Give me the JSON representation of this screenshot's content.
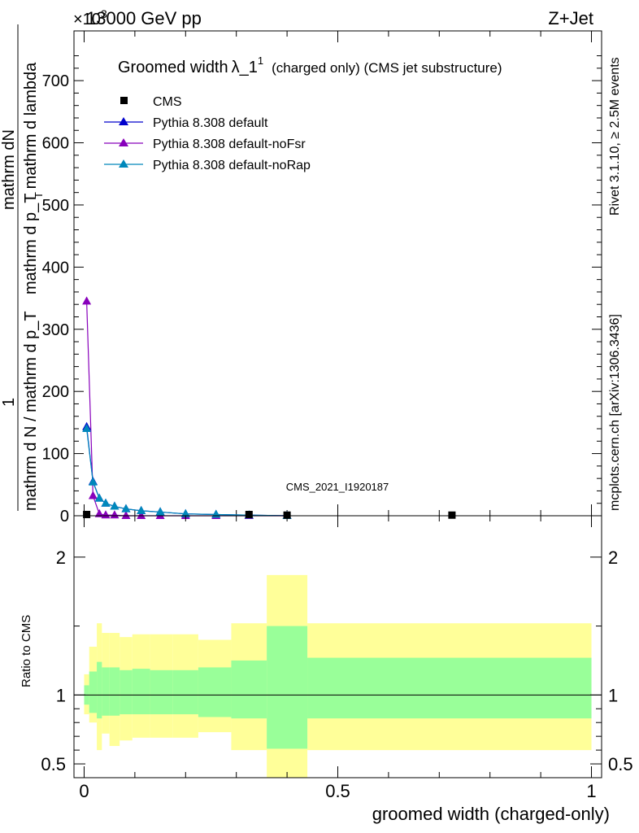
{
  "header": {
    "energy": "13000 GeV pp",
    "process": "Z+Jet",
    "exponent": "×10",
    "exponent_power": "3"
  },
  "side_labels": {
    "rivet": "Rivet 3.1.10, ≥ 2.5M events",
    "mcplots": "mcplots.cern.ch [arXiv:1306.3436]"
  },
  "plot": {
    "title_main": "Groomed width",
    "title_sym": "λ_1",
    "title_sup": "1",
    "title_rest": "(charged only) (CMS jet substructure)",
    "watermark": "CMS_2021_I1920187",
    "ylabel_num": "mathrm dN",
    "ylabel_den": "mathrm d p_T mathrm d lambda",
    "ylabel_frac1": "1",
    "ylabel_frac1_den": "mathrm d N / mathrm d p_T",
    "ylabel_sub": "T",
    "ratio_ylabel": "Ratio to CMS",
    "xlabel": "groomed width (charged-only)"
  },
  "colors": {
    "cms": "#000000",
    "default": "#0000cc",
    "noFsr": "#8800bb",
    "noRap": "#0088bb",
    "band_inner": "#99ff99",
    "band_outer": "#ffff99"
  },
  "chart_data": [
    {
      "type": "line",
      "title": "Groomed width λ_1^1 (charged only) (CMS jet substructure)",
      "ylim": [
        0,
        780
      ],
      "xlim": [
        -0.02,
        1.02
      ],
      "y_scale_factor": "×10^3",
      "y_ticks": [
        "0",
        "100",
        "200",
        "300",
        "400",
        "500",
        "600",
        "700"
      ],
      "legend_position": "top-left",
      "series": [
        {
          "name": "CMS",
          "marker": "square",
          "x": [
            0.005,
            0.325,
            0.4,
            0.725
          ],
          "y": [
            2,
            2,
            1,
            1
          ]
        },
        {
          "name": "Pythia 8.308 default",
          "marker": "triangle",
          "x": [
            0.005,
            0.0175,
            0.03,
            0.0425,
            0.06,
            0.0825,
            0.1125,
            0.15,
            0.2,
            0.26,
            0.325,
            0.4
          ],
          "y": [
            143,
            55,
            28,
            20,
            15,
            11,
            8,
            6,
            3,
            2,
            1,
            0
          ]
        },
        {
          "name": "Pythia 8.308 default-noFsr",
          "marker": "triangle",
          "x": [
            0.005,
            0.0175,
            0.03,
            0.0425,
            0.06,
            0.0825,
            0.1125,
            0.15,
            0.2,
            0.26,
            0.325,
            0.4
          ],
          "y": [
            345,
            32,
            3,
            1,
            1,
            0,
            0,
            0,
            0,
            0,
            0,
            0
          ]
        },
        {
          "name": "Pythia 8.308 default-noRap",
          "marker": "triangle",
          "x": [
            0.005,
            0.0175,
            0.03,
            0.0425,
            0.06,
            0.0825,
            0.1125,
            0.15,
            0.2,
            0.26,
            0.325,
            0.4
          ],
          "y": [
            140,
            54,
            28,
            20,
            15,
            11,
            8,
            6,
            3,
            2,
            1,
            0
          ]
        }
      ]
    },
    {
      "type": "area",
      "title": "Ratio to CMS",
      "ylabel": "Ratio to CMS",
      "xlabel": "groomed width (charged-only)",
      "ylim": [
        0.4,
        2.3
      ],
      "xlim": [
        -0.02,
        1.02
      ],
      "y_ticks": [
        "0.5",
        "1",
        "2"
      ],
      "x_ticks": [
        "0",
        "0.5",
        "1"
      ],
      "reference_line": 1,
      "bin_edges": [
        0,
        0.01,
        0.025,
        0.035,
        0.05,
        0.07,
        0.095,
        0.13,
        0.175,
        0.225,
        0.29,
        0.36,
        0.44,
        1.0
      ],
      "inner_band": {
        "lower": [
          0.93,
          0.87,
          0.83,
          0.85,
          0.85,
          0.86,
          0.86,
          0.86,
          0.86,
          0.84,
          0.83,
          0.61,
          0.83
        ],
        "upper": [
          1.07,
          1.17,
          1.24,
          1.2,
          1.2,
          1.18,
          1.19,
          1.18,
          1.18,
          1.2,
          1.25,
          1.5,
          1.27
        ]
      },
      "outer_band": {
        "lower": [
          0.86,
          0.8,
          0.6,
          0.72,
          0.63,
          0.67,
          0.69,
          0.69,
          0.69,
          0.73,
          0.6,
          0.33,
          0.6
        ],
        "upper": [
          1.15,
          1.35,
          1.52,
          1.45,
          1.45,
          1.42,
          1.44,
          1.44,
          1.44,
          1.4,
          1.52,
          1.87,
          1.52
        ]
      }
    }
  ]
}
